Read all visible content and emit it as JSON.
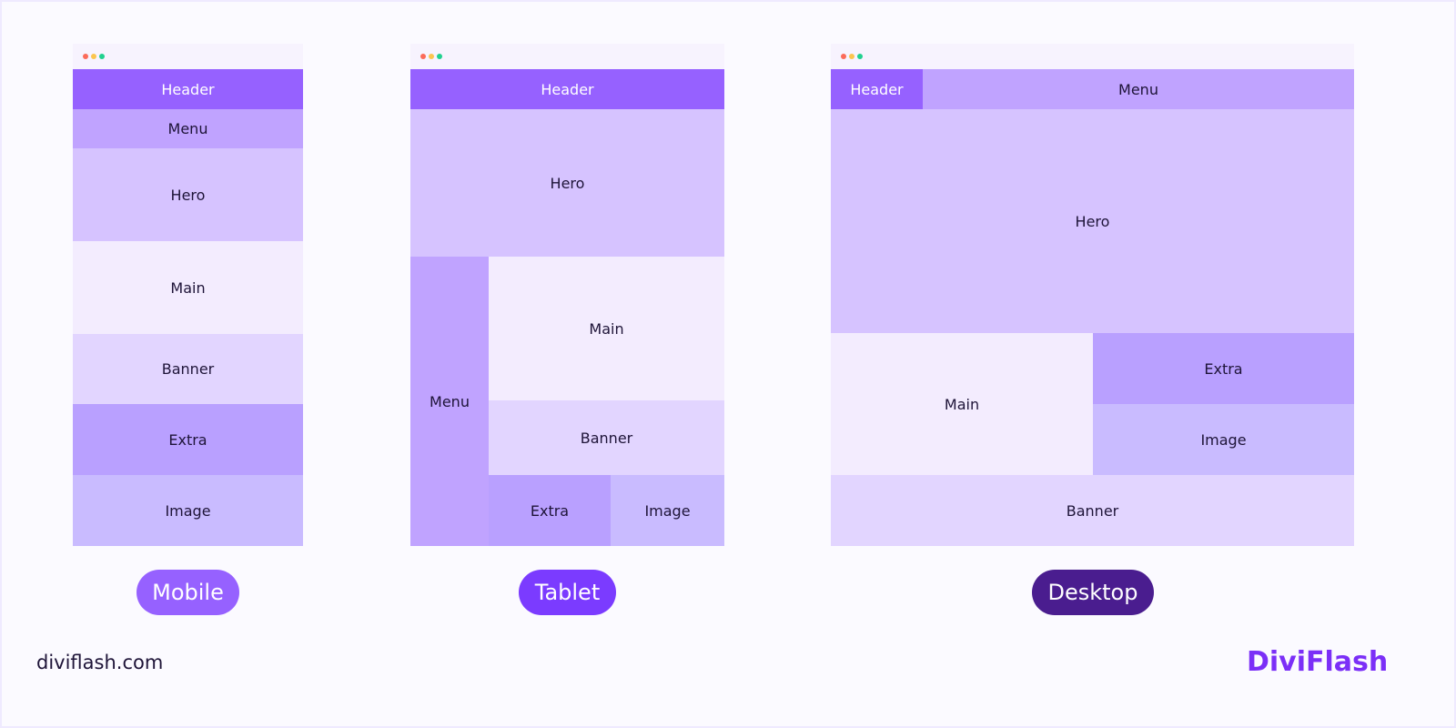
{
  "colors": {
    "header": "#9661ff",
    "menu": "#c0a3ff",
    "hero": "#d6c3ff",
    "main": "#f3ecfe",
    "banner": "#e2d5ff",
    "extra": "#b9a0ff",
    "image": "#c9bbff"
  },
  "mobile": {
    "header": "Header",
    "menu": "Menu",
    "hero": "Hero",
    "main": "Main",
    "banner": "Banner",
    "extra": "Extra",
    "image": "Image",
    "label": "Mobile"
  },
  "tablet": {
    "header": "Header",
    "menu": "Menu",
    "hero": "Hero",
    "main": "Main",
    "banner": "Banner",
    "extra": "Extra",
    "image": "Image",
    "label": "Tablet"
  },
  "desktop": {
    "header": "Header",
    "menu": "Menu",
    "hero": "Hero",
    "main": "Main",
    "banner": "Banner",
    "extra": "Extra",
    "image": "Image",
    "label": "Desktop"
  },
  "footer": {
    "site": "diviflash.com",
    "logo": "DiviFlash"
  }
}
